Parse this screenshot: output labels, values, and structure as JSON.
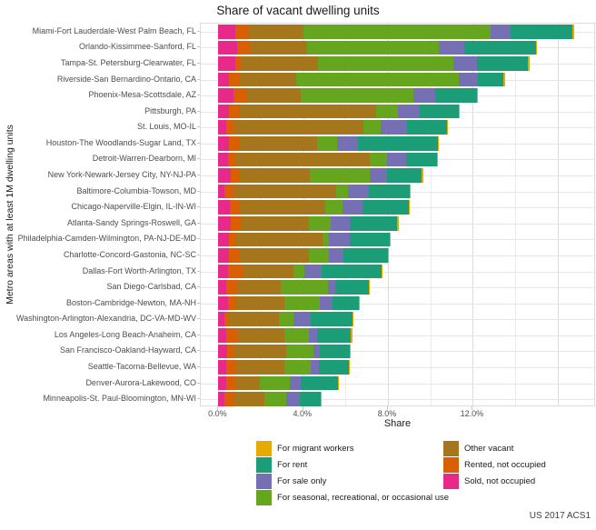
{
  "title": "Share of vacant dwelling units",
  "caption": "US 2017 ACS1",
  "axes": {
    "x_label": "Share",
    "y_label": "Metro areas with at least 1M dwelling units",
    "x_tick_labels": [
      "0.0%",
      "4.0%",
      "8.0%",
      "12.0%"
    ],
    "x_tick_values": [
      0,
      4,
      8,
      12
    ]
  },
  "chart_data": {
    "type": "bar",
    "orientation": "horizontal",
    "stacked": true,
    "title": "Share of vacant dwelling units",
    "xlabel": "Share",
    "ylabel": "Metro areas with at least 1M dwelling units",
    "unit": "percent",
    "xlim": [
      0,
      17.6
    ],
    "x_major_ticks": [
      0,
      4,
      8,
      12
    ],
    "grid": "vertical lines every 2% from 0 to 16, horizontal line per category",
    "legend_position": "bottom",
    "categories": [
      "Miami-Fort Lauderdale-West Palm Beach, FL",
      "Orlando-Kissimmee-Sanford, FL",
      "Tampa-St. Petersburg-Clearwater, FL",
      "Riverside-San Bernardino-Ontario, CA",
      "Phoenix-Mesa-Scottsdale, AZ",
      "Pittsburgh, PA",
      "St. Louis, MO-IL",
      "Houston-The Woodlands-Sugar Land, TX",
      "Detroit-Warren-Dearborn, MI",
      "New York-Newark-Jersey City, NY-NJ-PA",
      "Baltimore-Columbia-Towson, MD",
      "Chicago-Naperville-Elgin, IL-IN-WI",
      "Atlanta-Sandy Springs-Roswell, GA",
      "Philadelphia-Camden-Wilmington, PA-NJ-DE-MD",
      "Charlotte-Concord-Gastonia, NC-SC",
      "Dallas-Fort Worth-Arlington, TX",
      "San Diego-Carlsbad, CA",
      "Boston-Cambridge-Newton, MA-NH",
      "Washington-Arlington-Alexandria, DC-VA-MD-WV",
      "Los Angeles-Long Beach-Anaheim, CA",
      "San Francisco-Oakland-Hayward, CA",
      "Seattle-Tacoma-Bellevue, WA",
      "Denver-Aurora-Lakewood, CO",
      "Minneapolis-St. Paul-Bloomington, MN-WI"
    ],
    "series": [
      {
        "name": "Sold, not occupied",
        "color": "#E7298A",
        "values": [
          0.8,
          0.9,
          0.8,
          0.5,
          0.7,
          0.5,
          0.35,
          0.5,
          0.45,
          0.6,
          0.3,
          0.55,
          0.6,
          0.5,
          0.5,
          0.45,
          0.35,
          0.45,
          0.3,
          0.35,
          0.4,
          0.35,
          0.35,
          0.3
        ]
      },
      {
        "name": "Rented, not occupied",
        "color": "#D95F02",
        "values": [
          0.65,
          0.6,
          0.25,
          0.45,
          0.6,
          0.5,
          0.4,
          0.5,
          0.35,
          0.4,
          0.4,
          0.4,
          0.5,
          0.3,
          0.5,
          0.7,
          0.55,
          0.4,
          0.2,
          0.55,
          0.3,
          0.45,
          0.45,
          0.45
        ]
      },
      {
        "name": "Other vacant",
        "color": "#A6761D",
        "values": [
          2.55,
          2.7,
          3.65,
          2.7,
          2.6,
          6.45,
          6.1,
          3.65,
          6.35,
          3.3,
          4.85,
          4.1,
          3.15,
          4.1,
          3.25,
          2.4,
          2.05,
          2.25,
          2.35,
          2.2,
          2.5,
          2.3,
          1.15,
          1.4
        ]
      },
      {
        "name": "For seasonal, recreational, or occasional use",
        "color": "#66A61E",
        "values": [
          8.85,
          6.2,
          6.4,
          7.7,
          5.3,
          1.0,
          0.8,
          0.95,
          0.8,
          2.85,
          0.55,
          0.8,
          1.05,
          0.3,
          0.95,
          0.5,
          2.2,
          1.7,
          0.7,
          1.15,
          1.3,
          1.25,
          1.4,
          1.05
        ]
      },
      {
        "name": "For sale only",
        "color": "#7570B3",
        "values": [
          0.95,
          1.2,
          1.1,
          0.9,
          1.05,
          1.05,
          1.25,
          1.0,
          0.9,
          0.8,
          1.0,
          0.95,
          0.9,
          1.0,
          0.7,
          0.8,
          0.35,
          0.6,
          0.8,
          0.4,
          0.3,
          0.4,
          0.55,
          0.65
        ]
      },
      {
        "name": "For rent",
        "color": "#1B9E77",
        "values": [
          2.9,
          3.4,
          2.4,
          1.2,
          1.95,
          1.85,
          1.9,
          3.75,
          1.45,
          1.65,
          1.95,
          2.2,
          2.25,
          1.9,
          2.1,
          2.85,
          1.6,
          1.25,
          2.0,
          1.6,
          1.4,
          1.4,
          1.75,
          1.0
        ]
      },
      {
        "name": "For migrant workers",
        "color": "#E6AB02",
        "values": [
          0.08,
          0.05,
          0.07,
          0.1,
          0.05,
          0.03,
          0.03,
          0.03,
          0.02,
          0.07,
          0.02,
          0.02,
          0.07,
          0.02,
          0.02,
          0.03,
          0.03,
          0.03,
          0.02,
          0.08,
          0.03,
          0.03,
          0.03,
          0.02
        ]
      }
    ],
    "legend": {
      "left_column": [
        "For migrant workers",
        "For rent",
        "For sale only",
        "For seasonal, recreational, or occasional use"
      ],
      "right_column": [
        "Other vacant",
        "Rented, not occupied",
        "Sold, not occupied"
      ]
    }
  },
  "colors": {
    "migrant_workers": "#E6AB02",
    "for_rent": "#1B9E77",
    "for_sale_only": "#7570B3",
    "seasonal": "#66A61E",
    "other_vacant": "#A6761D",
    "rented_not_occupied": "#D95F02",
    "sold_not_occupied": "#E7298A",
    "gridline": "#e6e6e6",
    "tick_text": "#4d4d4d",
    "text": "#1a1a1a"
  }
}
